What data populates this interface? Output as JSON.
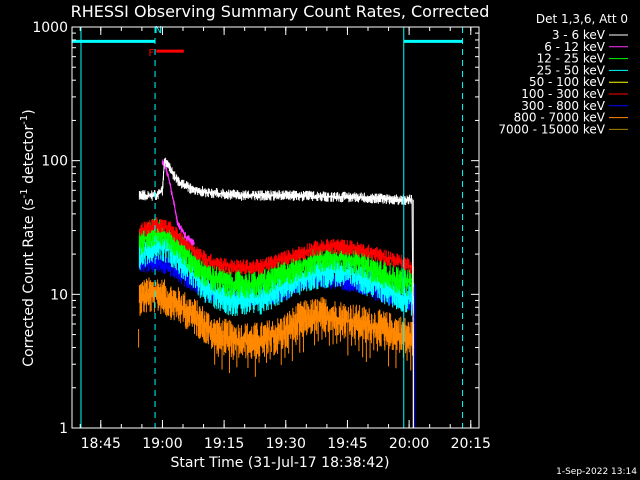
{
  "chart_data": {
    "type": "line",
    "title": "RHESSI Observing Summary Count Rates, Corrected",
    "xlabel": "Start Time (31-Jul-17 18:38:42)",
    "ylabel": "Corrected Count Rate (s-1 detector-1)",
    "ylabel_parts": {
      "a": "Corrected Count Rate (s",
      "b": "-1",
      "c": " detector",
      "d": "-1",
      "e": ")"
    },
    "y_scale": "log",
    "ylim": [
      1,
      1000
    ],
    "y_ticks": [
      {
        "v": 1,
        "label": "1"
      },
      {
        "v": 10,
        "label": "10"
      },
      {
        "v": 100,
        "label": "100"
      },
      {
        "v": 1000,
        "label": "1000"
      }
    ],
    "x_range_minutes": [
      -0.7,
      98.3
    ],
    "x_ticks": [
      {
        "m": 6.3,
        "label": "18:45"
      },
      {
        "m": 21.3,
        "label": "19:00"
      },
      {
        "m": 36.3,
        "label": "19:15"
      },
      {
        "m": 51.3,
        "label": "19:30"
      },
      {
        "m": 66.3,
        "label": "19:45"
      },
      {
        "m": 81.3,
        "label": "20:00"
      },
      {
        "m": 96.3,
        "label": "20:15"
      }
    ],
    "legend_header": "Det 1,3,6, Att 0",
    "legend": [
      {
        "label": "3 - 6 keV",
        "color": "#ffffff"
      },
      {
        "label": "6 - 12 keV",
        "color": "#ff33ff"
      },
      {
        "label": "12 - 25 keV",
        "color": "#00ff00"
      },
      {
        "label": "25 - 50 keV",
        "color": "#00ffff"
      },
      {
        "label": "50 - 100 keV",
        "color": "#ffff00"
      },
      {
        "label": "100 - 300 keV",
        "color": "#ff0000"
      },
      {
        "label": "300 - 800 keV",
        "color": "#0000ff"
      },
      {
        "label": "800 - 7000 keV",
        "color": "#ff8800"
      },
      {
        "label": "7000 - 15000 keV",
        "color": "#aa8800"
      }
    ],
    "series": [
      {
        "color": "#ffffff",
        "x": [
          15.7,
          18,
          20,
          21.3,
          21.8,
          23,
          25,
          28,
          32,
          40,
          50,
          60,
          70,
          80,
          82,
          82.5
        ],
        "y": [
          55,
          55,
          55,
          60,
          100,
          88,
          70,
          62,
          58,
          55,
          55,
          54,
          53,
          51,
          51,
          1
        ]
      },
      {
        "color": "#ff33ff",
        "x": [
          21.3,
          22,
          23,
          24,
          25,
          27,
          29
        ],
        "y": [
          98,
          92,
          70,
          50,
          34,
          27,
          24
        ]
      },
      {
        "color": "#00ff00",
        "x": [
          15.7,
          20,
          23,
          27,
          32,
          38,
          45,
          52,
          58,
          63,
          68,
          73,
          78,
          82.5
        ],
        "y": [
          25,
          30,
          27,
          20,
          14,
          12,
          12,
          15,
          18,
          19,
          18,
          15,
          13,
          12
        ]
      },
      {
        "color": "#00ffff",
        "x": [
          15.7,
          20,
          23,
          27,
          32,
          38,
          45,
          52,
          58,
          63,
          68,
          73,
          78,
          82.5
        ],
        "y": [
          20,
          24,
          22,
          16,
          11,
          9,
          9,
          12,
          14,
          15,
          14,
          12,
          10,
          9
        ]
      },
      {
        "color": "#ff0000",
        "x": [
          15.7,
          20,
          23,
          27,
          32,
          38,
          45,
          52,
          58,
          63,
          68,
          73,
          78,
          82.5
        ],
        "y": [
          30,
          33,
          31,
          24,
          18,
          16,
          16,
          19,
          22,
          23,
          22,
          20,
          18,
          16
        ]
      },
      {
        "color": "#0000ff",
        "x": [
          15.7,
          20,
          23,
          27,
          32,
          38,
          45,
          50,
          55,
          60,
          65,
          70,
          75,
          80,
          82.5
        ],
        "y": [
          17,
          17,
          16,
          13,
          10.5,
          9.5,
          9.5,
          10,
          12.5,
          13,
          12.5,
          11.5,
          10,
          9,
          8.5
        ]
      },
      {
        "color": "#ff8800",
        "x": [
          15.7,
          20,
          23,
          26,
          30,
          34,
          40,
          45,
          50,
          55,
          60,
          65,
          70,
          75,
          80,
          82.5
        ],
        "y": [
          9.5,
          10,
          9,
          8,
          6.5,
          5,
          4.5,
          4.5,
          5,
          6.5,
          7,
          6.5,
          6,
          5.5,
          5,
          4.5
        ]
      }
    ],
    "noise_series": [
      {
        "color": "#ffffff",
        "amp": 0.04
      },
      {
        "color": "#ff33ff",
        "amp": 0.03
      },
      {
        "color": "#00ff00",
        "amp": 0.11
      },
      {
        "color": "#00ffff",
        "amp": 0.12
      },
      {
        "color": "#ff0000",
        "amp": 0.06
      },
      {
        "color": "#0000ff",
        "amp": 0.07
      },
      {
        "color": "#ff8800",
        "amp": 0.14
      }
    ],
    "day_night_bars": {
      "color": "#00ffff",
      "segments": [
        [
          -0.7,
          19.5
        ],
        [
          80.0,
          94.3
        ]
      ],
      "level": 780
    },
    "vertical_lines_solid": [
      {
        "m": 80.0,
        "color": "#00ffff"
      }
    ],
    "vertical_lines_dashed": [
      {
        "m": 19.5,
        "color": "#00ffff"
      },
      {
        "m": 94.3,
        "color": "#00ffff"
      }
    ],
    "flag_markers": [
      {
        "label": "N",
        "m": 20.3,
        "level": 950,
        "color": "#00ffff"
      },
      {
        "label": "F",
        "m": 18.6,
        "level": 640,
        "color": "#ff0000"
      }
    ],
    "flare_bar": {
      "x": [
        19.8,
        26.5
      ],
      "level": 660,
      "color": "#ff0000"
    }
  },
  "date_stamp": "1-Sep-2022 13:14"
}
